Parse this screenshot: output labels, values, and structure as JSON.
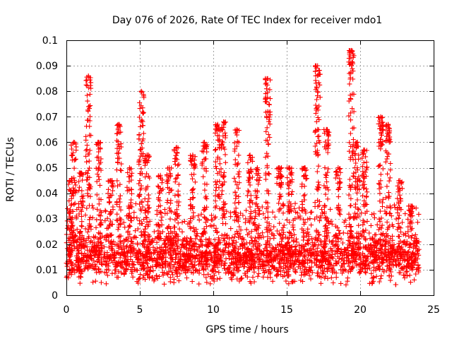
{
  "chart_data": {
    "type": "scatter",
    "title": "Day 076 of 2026, Rate Of TEC Index for receiver mdo1",
    "xlabel": "GPS time / hours",
    "ylabel": "ROTI / TECUs",
    "xlim": [
      0,
      25
    ],
    "ylim": [
      0,
      0.1
    ],
    "grid": true,
    "x_ticks": [
      0,
      5,
      10,
      15,
      20,
      25
    ],
    "x_tick_labels": [
      "0",
      "5",
      "10",
      "15",
      "20",
      "25"
    ],
    "y_ticks": [
      0,
      0.01,
      0.02,
      0.03,
      0.04,
      0.05,
      0.06,
      0.07,
      0.08,
      0.09,
      0.1
    ],
    "y_tick_labels": [
      "0",
      "0.01",
      "0.02",
      "0.03",
      "0.04",
      "0.05",
      "0.06",
      "0.07",
      "0.08",
      "0.09",
      "0.1"
    ],
    "marker": "+",
    "marker_color": "#ff0000",
    "series": [
      {
        "name": "ROTI",
        "color": "#ff0000",
        "x_start": 0.0,
        "x_end": 24.0,
        "baseline_min": 0.004,
        "baseline_max": 0.025,
        "spikes": [
          {
            "x": 0.3,
            "peak": 0.045
          },
          {
            "x": 0.5,
            "peak": 0.06
          },
          {
            "x": 1.0,
            "peak": 0.048
          },
          {
            "x": 1.5,
            "peak": 0.086
          },
          {
            "x": 2.2,
            "peak": 0.06
          },
          {
            "x": 3.0,
            "peak": 0.045
          },
          {
            "x": 3.6,
            "peak": 0.067
          },
          {
            "x": 4.3,
            "peak": 0.05
          },
          {
            "x": 5.1,
            "peak": 0.08
          },
          {
            "x": 5.5,
            "peak": 0.055
          },
          {
            "x": 6.4,
            "peak": 0.047
          },
          {
            "x": 7.0,
            "peak": 0.05
          },
          {
            "x": 7.5,
            "peak": 0.058
          },
          {
            "x": 8.6,
            "peak": 0.055
          },
          {
            "x": 9.4,
            "peak": 0.06
          },
          {
            "x": 10.3,
            "peak": 0.067
          },
          {
            "x": 10.7,
            "peak": 0.068
          },
          {
            "x": 11.6,
            "peak": 0.065
          },
          {
            "x": 12.5,
            "peak": 0.055
          },
          {
            "x": 13.0,
            "peak": 0.05
          },
          {
            "x": 13.7,
            "peak": 0.085
          },
          {
            "x": 14.5,
            "peak": 0.05
          },
          {
            "x": 15.2,
            "peak": 0.05
          },
          {
            "x": 16.2,
            "peak": 0.05
          },
          {
            "x": 17.1,
            "peak": 0.09
          },
          {
            "x": 17.7,
            "peak": 0.065
          },
          {
            "x": 18.5,
            "peak": 0.05
          },
          {
            "x": 19.4,
            "peak": 0.096
          },
          {
            "x": 19.8,
            "peak": 0.06
          },
          {
            "x": 20.3,
            "peak": 0.057
          },
          {
            "x": 21.4,
            "peak": 0.07
          },
          {
            "x": 21.9,
            "peak": 0.067
          },
          {
            "x": 22.7,
            "peak": 0.045
          },
          {
            "x": 23.4,
            "peak": 0.035
          }
        ]
      }
    ]
  }
}
